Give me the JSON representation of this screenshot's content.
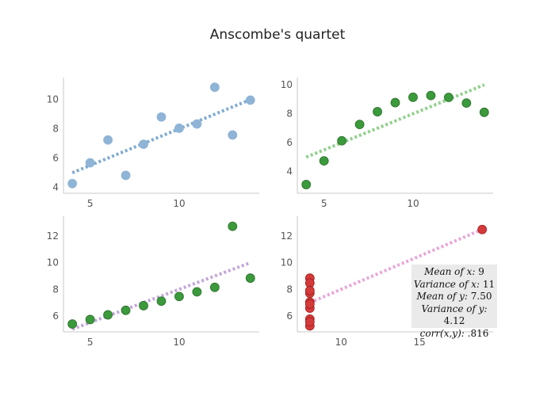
{
  "title": "Anscombe's quartet",
  "colors": {
    "panel1_points": "#8fb4d6",
    "panel1_line": "#7fabd2",
    "panel2_points": "#3b9a3b",
    "panel2_line": "#8fd08a",
    "panel3_points": "#3b9a3b",
    "panel3_line": "#c2a6da",
    "panel4_points": "#d33a3a",
    "panel4_line": "#e8a6d8",
    "axis": "#c8c8c8",
    "tick_text": "#555555",
    "stats_bg": "#eaeaea"
  },
  "stats": [
    {
      "label": "Mean of x:",
      "value": "9"
    },
    {
      "label": "Variance of x:",
      "value": "11"
    },
    {
      "label": "Mean of y:",
      "value": "7.50"
    },
    {
      "label": "Variance of y:",
      "value": "4.12"
    },
    {
      "label": "corr(x,y):",
      "value": ".816"
    }
  ],
  "chart_data": [
    {
      "type": "scatter",
      "panel": 1,
      "x": [
        4,
        5,
        6,
        7,
        8,
        9,
        10,
        11,
        12,
        13,
        14
      ],
      "y": [
        4.26,
        5.68,
        7.24,
        4.82,
        6.95,
        8.81,
        8.04,
        8.33,
        10.84,
        7.58,
        9.96
      ],
      "fit": {
        "x": [
          4,
          14
        ],
        "y": [
          5.0,
          10.0
        ]
      },
      "xlim": [
        3.5,
        14.5
      ],
      "ylim": [
        3.6,
        11.5
      ],
      "xticks": [
        5,
        10
      ],
      "yticks": [
        4,
        6,
        8,
        10
      ]
    },
    {
      "type": "scatter",
      "panel": 2,
      "x": [
        4,
        5,
        6,
        7,
        8,
        9,
        10,
        11,
        12,
        13,
        14
      ],
      "y": [
        3.1,
        4.74,
        6.13,
        7.26,
        8.14,
        8.77,
        9.14,
        9.26,
        9.13,
        8.74,
        8.1
      ],
      "fit": {
        "x": [
          4,
          14
        ],
        "y": [
          5.0,
          10.0
        ]
      },
      "xlim": [
        3.5,
        14.5
      ],
      "ylim": [
        2.5,
        10.5
      ],
      "xticks": [
        5,
        10
      ],
      "yticks": [
        4,
        6,
        8,
        10
      ]
    },
    {
      "type": "scatter",
      "panel": 3,
      "x": [
        4,
        5,
        6,
        7,
        8,
        9,
        10,
        11,
        12,
        13,
        14
      ],
      "y": [
        5.39,
        5.73,
        6.08,
        6.42,
        6.77,
        7.11,
        7.46,
        7.81,
        8.15,
        12.74,
        8.84
      ],
      "fit": {
        "x": [
          4,
          14
        ],
        "y": [
          5.0,
          10.0
        ]
      },
      "xlim": [
        3.5,
        14.5
      ],
      "ylim": [
        4.8,
        13.5
      ],
      "xticks": [
        5,
        10
      ],
      "yticks": [
        6,
        8,
        10,
        12
      ]
    },
    {
      "type": "scatter",
      "panel": 4,
      "x": [
        8,
        8,
        8,
        8,
        8,
        8,
        8,
        19,
        8,
        8,
        8
      ],
      "y": [
        6.58,
        5.76,
        7.71,
        8.84,
        8.47,
        7.04,
        5.25,
        12.5,
        5.56,
        7.91,
        6.89
      ],
      "fit": {
        "x": [
          8,
          19
        ],
        "y": [
          7.0,
          12.5
        ]
      },
      "xlim": [
        7.2,
        19.7
      ],
      "ylim": [
        4.8,
        13.5
      ],
      "xticks": [
        10,
        15
      ],
      "yticks": [
        6,
        8,
        10,
        12
      ]
    }
  ]
}
